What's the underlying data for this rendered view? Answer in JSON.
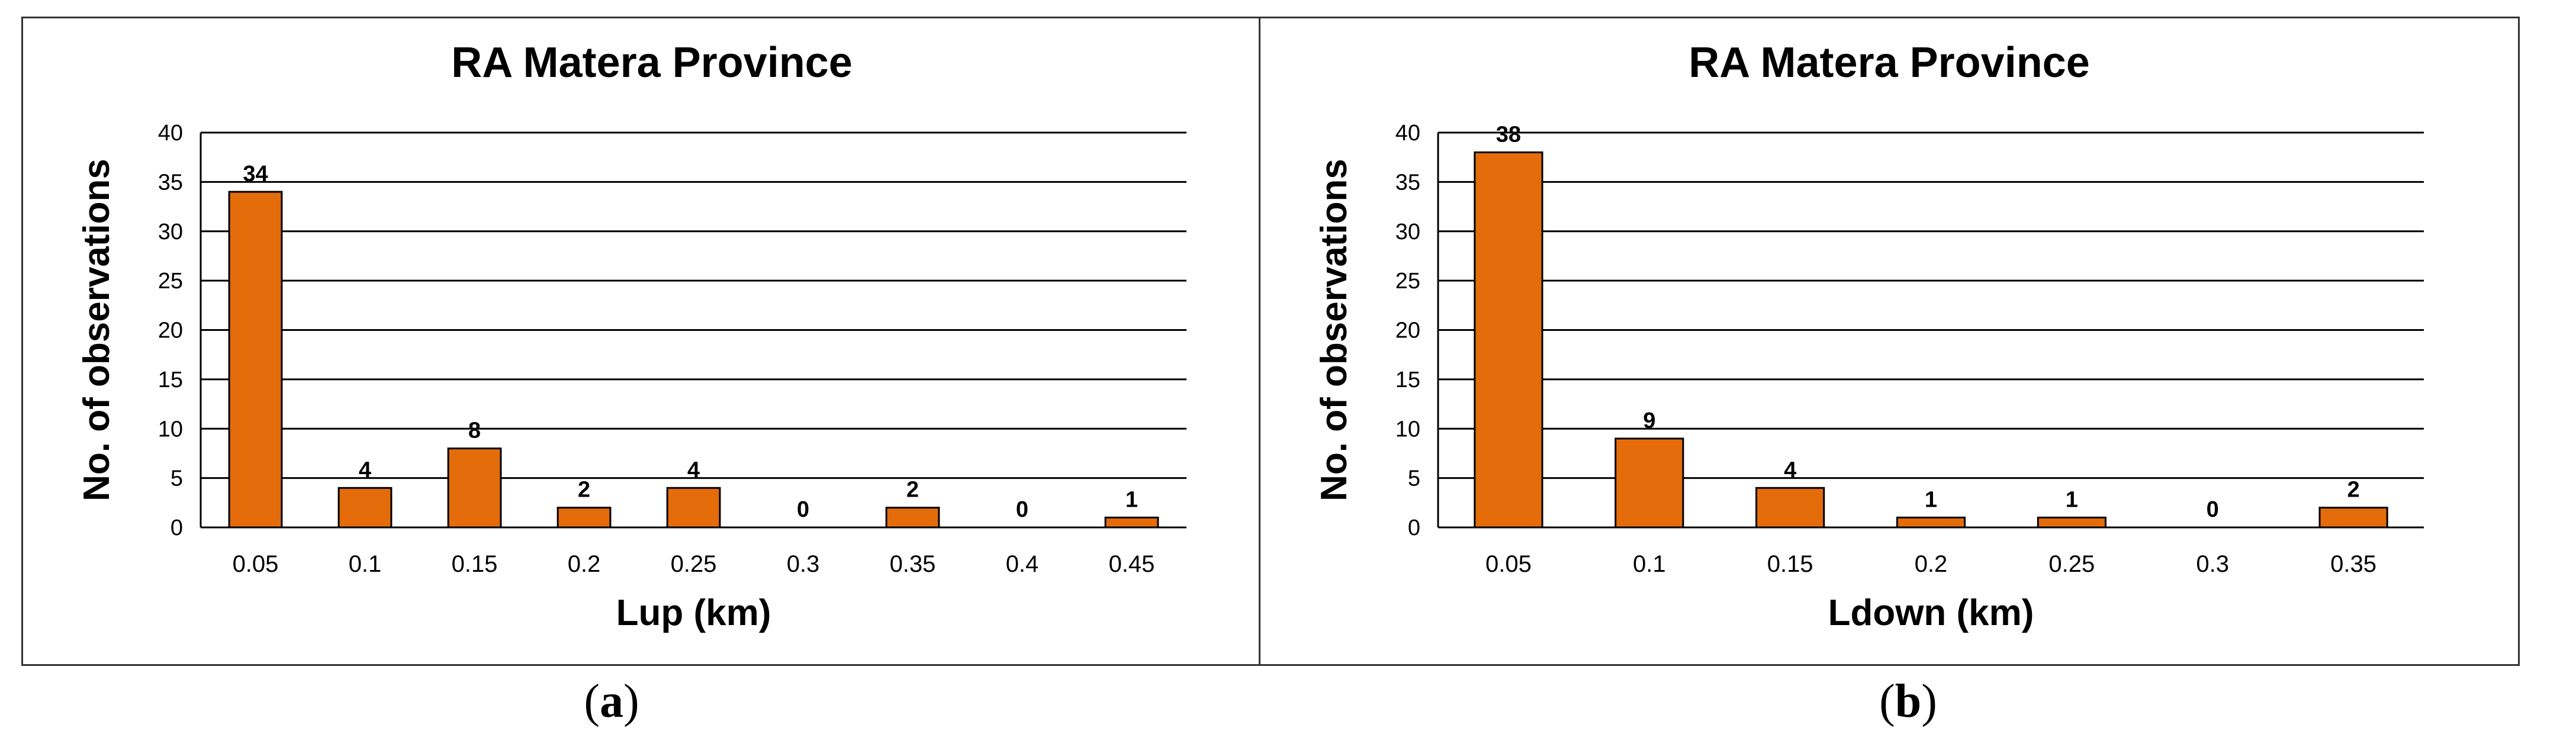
{
  "chart_data": [
    {
      "type": "bar",
      "title": "RA Matera Province",
      "xlabel": "Lup (km)",
      "ylabel": "No. of observations",
      "categories": [
        "0.05",
        "0.1",
        "0.15",
        "0.2",
        "0.25",
        "0.3",
        "0.35",
        "0.4",
        "0.45"
      ],
      "values": [
        34,
        4,
        8,
        2,
        4,
        0,
        2,
        0,
        1
      ],
      "data_labels": [
        "34",
        "4",
        "8",
        "2",
        "4",
        "0",
        "2",
        "0",
        "1"
      ],
      "ylim": [
        0,
        40
      ],
      "yticks": [
        "0",
        "5",
        "10",
        "15",
        "20",
        "25",
        "30",
        "35",
        "40"
      ],
      "grid": true,
      "bar_color": "#E46C0A",
      "caption": "a"
    },
    {
      "type": "bar",
      "title": "RA Matera Province",
      "xlabel": "Ldown (km)",
      "ylabel": "No. of observations",
      "categories": [
        "0.05",
        "0.1",
        "0.15",
        "0.2",
        "0.25",
        "0.3",
        "0.35"
      ],
      "values": [
        38,
        9,
        4,
        1,
        1,
        0,
        2
      ],
      "data_labels": [
        "38",
        "9",
        "4",
        "1",
        "1",
        "0",
        "2"
      ],
      "ylim": [
        0,
        40
      ],
      "yticks": [
        "0",
        "5",
        "10",
        "15",
        "20",
        "25",
        "30",
        "35",
        "40"
      ],
      "grid": true,
      "bar_color": "#E46C0A",
      "caption": "b"
    }
  ]
}
